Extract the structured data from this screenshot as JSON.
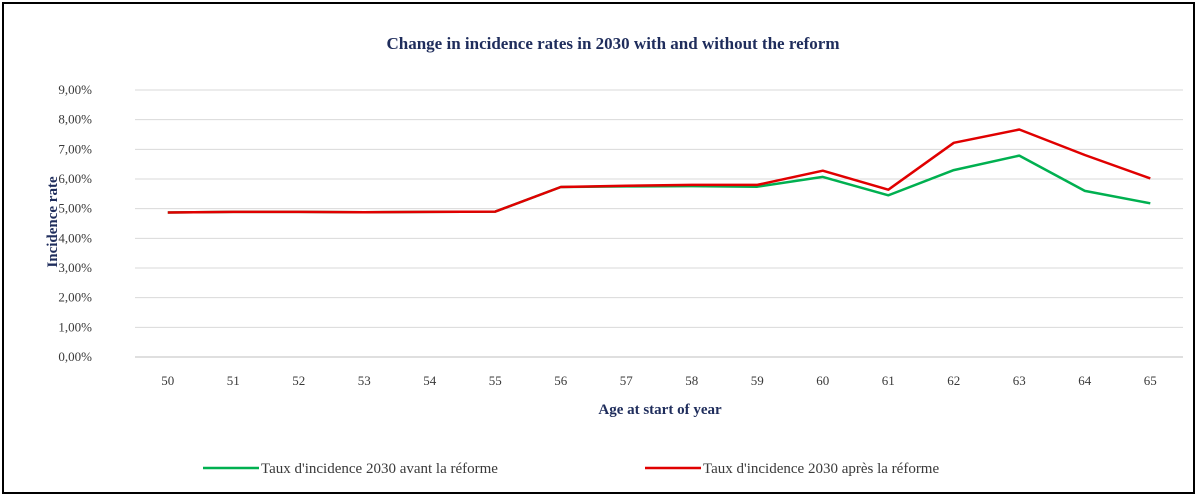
{
  "chart_data": {
    "type": "line",
    "title": "Change in incidence rates in 2030 with and without the reform",
    "xlabel": "Age at start of year",
    "ylabel": "Incidence rate",
    "categories": [
      "50",
      "51",
      "52",
      "53",
      "54",
      "55",
      "56",
      "57",
      "58",
      "59",
      "60",
      "61",
      "62",
      "63",
      "64",
      "65"
    ],
    "y_tick_labels": [
      "0,00%",
      "1,00%",
      "2,00%",
      "3,00%",
      "4,00%",
      "5,00%",
      "6,00%",
      "7,00%",
      "8,00%",
      "9,00%"
    ],
    "ylim": [
      0,
      9
    ],
    "y_unit": "%",
    "grid": true,
    "legend_position": "bottom",
    "series": [
      {
        "name": "Taux d'incidence 2030 avant la réforme",
        "color": "#00b050",
        "values": [
          4.87,
          4.89,
          4.89,
          4.88,
          4.89,
          4.9,
          5.73,
          5.75,
          5.76,
          5.74,
          6.07,
          5.45,
          6.3,
          6.79,
          5.6,
          5.18
        ]
      },
      {
        "name": "Taux d'incidence 2030 après la réforme",
        "color": "#e00000",
        "values": [
          4.87,
          4.89,
          4.89,
          4.88,
          4.89,
          4.9,
          5.73,
          5.77,
          5.8,
          5.8,
          6.28,
          5.64,
          7.22,
          7.67,
          6.81,
          6.02
        ]
      }
    ]
  }
}
